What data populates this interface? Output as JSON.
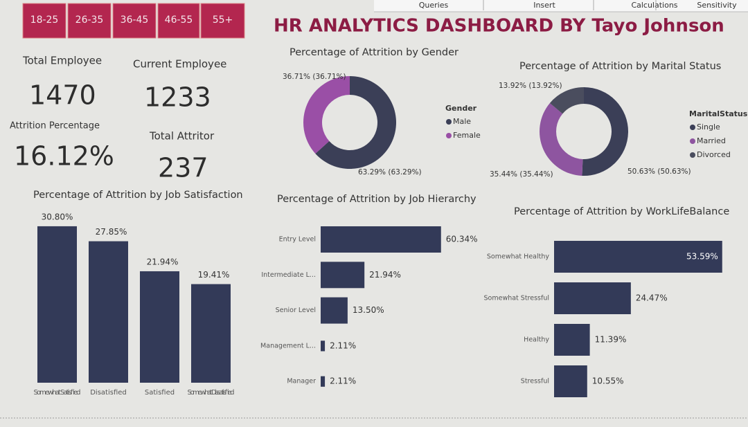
{
  "menu": [
    "Queries",
    "Insert",
    "Calculations",
    "Sensitivity"
  ],
  "age_filters": [
    "18-25",
    "26-35",
    "36-45",
    "46-55",
    "55+"
  ],
  "title": "HR ANALYTICS DASHBOARD BY Tayo Johnson",
  "kpis": [
    {
      "label": "Total Employee",
      "value": "1470"
    },
    {
      "label": "Current Employee",
      "value": "1233"
    },
    {
      "label": "Attrition Percentage",
      "value": "16.12%"
    },
    {
      "label": "Total Attritor",
      "value": "237"
    }
  ],
  "chart_data": [
    {
      "type": "donut",
      "title": "Percentage of Attrition by Gender",
      "legend_title": "Gender",
      "categories": [
        "Male",
        "Female"
      ],
      "values": [
        63.29,
        36.71
      ],
      "value_labels": [
        "63.29% (63.29%)",
        "36.71% (36.71%)"
      ],
      "colors": [
        "#3b3f57",
        "#9a4fa6"
      ]
    },
    {
      "type": "donut",
      "title": "Percentage of Attrition by Marital Status",
      "legend_title": "MaritalStatus",
      "categories": [
        "Single",
        "Married",
        "Divorced"
      ],
      "values": [
        50.63,
        35.44,
        13.92
      ],
      "value_labels": [
        "50.63% (50.63%)",
        "35.44% (35.44%)",
        "13.92% (13.92%)"
      ],
      "colors": [
        "#3b3f57",
        "#8e55a0",
        "#4a4d5e"
      ]
    },
    {
      "type": "column",
      "title": "Percentage of Attrition by Job Satisfaction",
      "categories": [
        "Somewhat Satisfied",
        "Disatisfied",
        "Satisfied",
        "Somewhat Dissatisfied"
      ],
      "values": [
        30.8,
        27.85,
        21.94,
        19.41
      ],
      "value_labels": [
        "30.80%",
        "27.85%",
        "21.94%",
        "19.41%"
      ],
      "color": "#333a58"
    },
    {
      "type": "bar",
      "title": "Percentage of Attrition by Job Hierarchy",
      "categories": [
        "Entry Level",
        "Intermediate L...",
        "Senior Level",
        "Management L...",
        "Manager"
      ],
      "values": [
        60.34,
        21.94,
        13.5,
        2.11,
        2.11
      ],
      "value_labels": [
        "60.34%",
        "21.94%",
        "13.50%",
        "2.11%",
        "2.11%"
      ],
      "color": "#333a58"
    },
    {
      "type": "bar",
      "title": "Percentage of Attrition by WorkLifeBalance",
      "categories": [
        "Somewhat Healthy",
        "Somewhat Stressful",
        "Healthy",
        "Stressful"
      ],
      "values": [
        53.59,
        24.47,
        11.39,
        10.55
      ],
      "value_labels": [
        "53.59%",
        "24.47%",
        "11.39%",
        "10.55%"
      ],
      "color": "#333a58"
    }
  ]
}
